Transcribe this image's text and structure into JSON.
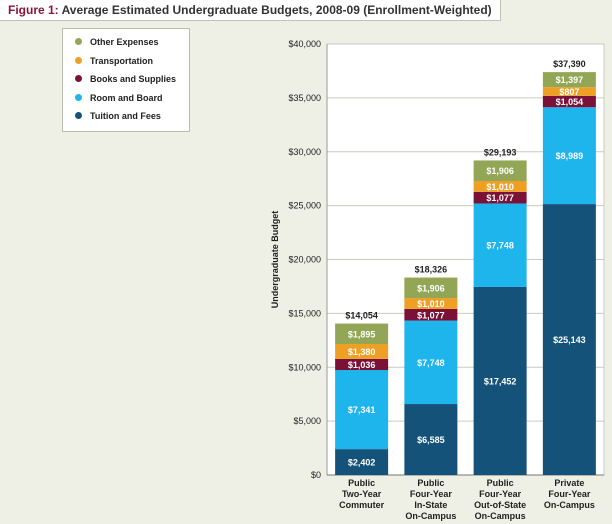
{
  "title": {
    "lead": "Figure 1:",
    "text": "Average Estimated Undergraduate Budgets, 2008-09 (Enrollment-Weighted)"
  },
  "chart_data": {
    "type": "bar",
    "stacked": true,
    "title": "Figure 1: Average Estimated Undergraduate Budgets, 2008-09 (Enrollment-Weighted)",
    "xlabel": "",
    "ylabel": "Undergraduate Budget",
    "ylim": [
      0,
      40000
    ],
    "yticks": [
      "$0",
      "$5,000",
      "$10,000",
      "$15,000",
      "$20,000",
      "$25,000",
      "$30,000",
      "$35,000",
      "$40,000"
    ],
    "grid": true,
    "legend_position": "top-left",
    "categories": [
      [
        "Public",
        "Two-Year",
        "Commuter"
      ],
      [
        "Public",
        "Four-Year",
        "In-State",
        "On-Campus"
      ],
      [
        "Public",
        "Four-Year",
        "Out-of-State",
        "On-Campus"
      ],
      [
        "Private",
        "Four-Year",
        "On-Campus"
      ]
    ],
    "series": [
      {
        "name": "Tuition and Fees",
        "color": "#14527a",
        "values": [
          2402,
          6585,
          17452,
          25143
        ],
        "labels": [
          "$2,402",
          "$6,585",
          "$17,452",
          "$25,143"
        ]
      },
      {
        "name": "Room and Board",
        "color": "#1eb4ec",
        "values": [
          7341,
          7748,
          7748,
          8989
        ],
        "labels": [
          "$7,341",
          "$7,748",
          "$7,748",
          "$8,989"
        ]
      },
      {
        "name": "Books and Supplies",
        "color": "#7c1138",
        "values": [
          1036,
          1077,
          1077,
          1054
        ],
        "labels": [
          "$1,036",
          "$1,077",
          "$1,077",
          "$1,054"
        ]
      },
      {
        "name": "Transportation",
        "color": "#eea024",
        "values": [
          1380,
          1010,
          1010,
          807
        ],
        "labels": [
          "$1,380",
          "$1,010",
          "$1,010",
          "$807"
        ]
      },
      {
        "name": "Other Expenses",
        "color": "#92a656",
        "values": [
          1895,
          1906,
          1906,
          1397
        ],
        "labels": [
          "$1,895",
          "$1,906",
          "$1,906",
          "$1,397"
        ]
      }
    ],
    "totals": [
      "$14,054",
      "$18,326",
      "$29,193",
      "$37,390"
    ]
  }
}
